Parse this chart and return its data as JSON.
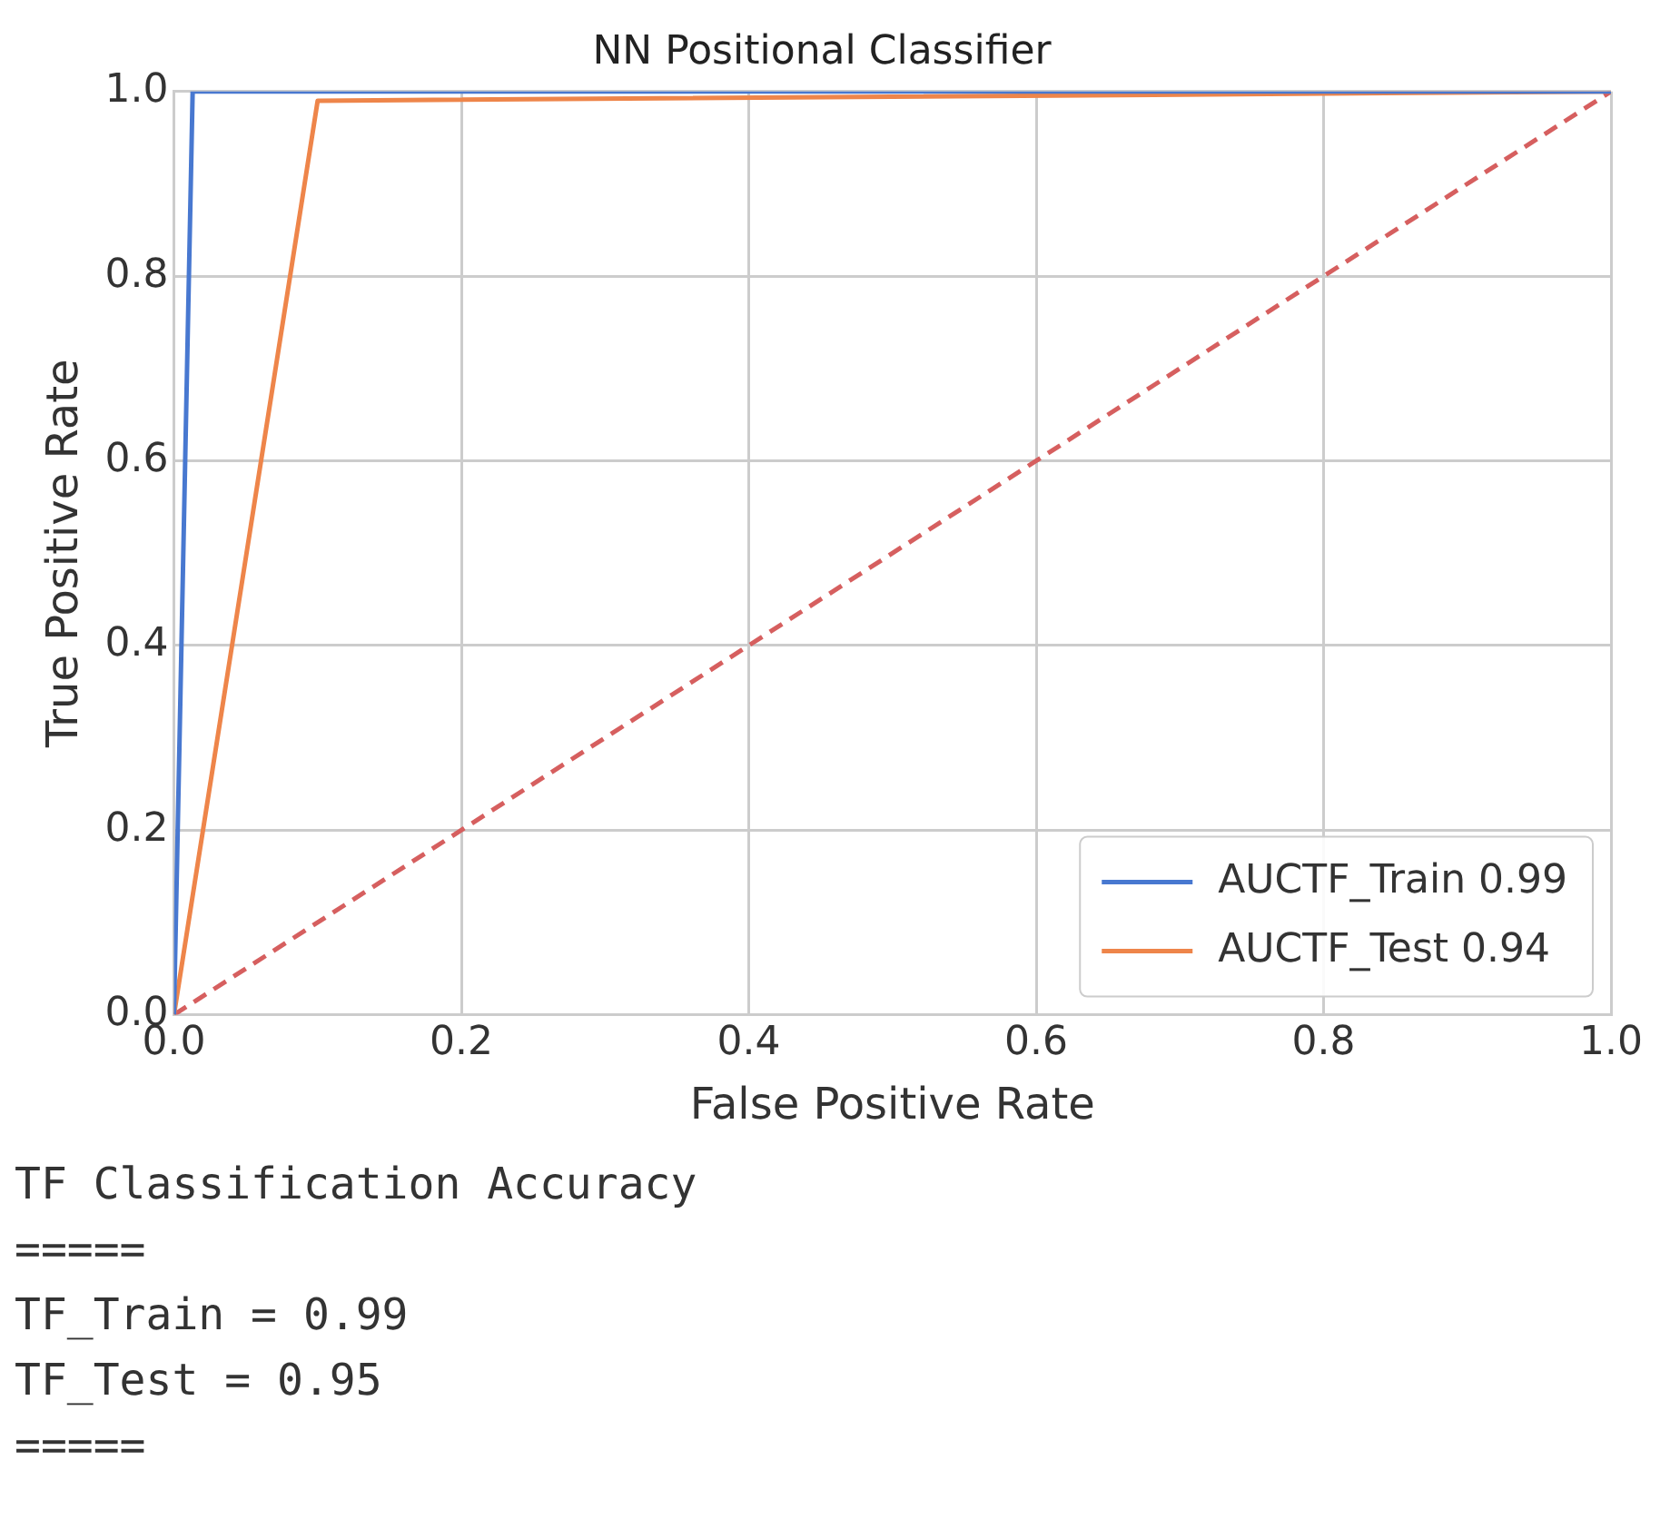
{
  "chart_data": {
    "type": "line",
    "title": "NN Positional Classifier",
    "xlabel": "False Positive Rate",
    "ylabel": "True Positive Rate",
    "xlim": [
      0,
      1
    ],
    "ylim": [
      0,
      1
    ],
    "xticks": [
      {
        "value": 0,
        "label": "0.0"
      },
      {
        "value": 0.2,
        "label": "0.2"
      },
      {
        "value": 0.4,
        "label": "0.4"
      },
      {
        "value": 0.6,
        "label": "0.6"
      },
      {
        "value": 0.8,
        "label": "0.8"
      },
      {
        "value": 1,
        "label": "1.0"
      }
    ],
    "yticks": [
      {
        "value": 0,
        "label": "0.0"
      },
      {
        "value": 0.2,
        "label": "0.2"
      },
      {
        "value": 0.4,
        "label": "0.4"
      },
      {
        "value": 0.6,
        "label": "0.6"
      },
      {
        "value": 0.8,
        "label": "0.8"
      },
      {
        "value": 1,
        "label": "1.0"
      }
    ],
    "grid": true,
    "legend": "bottom right",
    "marker": "none",
    "series": [
      {
        "name": "AUCTF_Train 0.99",
        "color": "#4878d0",
        "x": [
          0,
          0.013,
          1
        ],
        "values": [
          0,
          1,
          1
        ]
      },
      {
        "name": "AUCTF_Test 0.94",
        "color": "#ee854a",
        "x": [
          0,
          0.1,
          1
        ],
        "values": [
          0,
          0.99,
          1
        ]
      },
      {
        "color": "#d65f5f",
        "line_style": "dashed",
        "x": [
          0,
          1
        ],
        "values": [
          0,
          1
        ]
      }
    ],
    "annotations": [
      "TF Classification Accuracy",
      "=====",
      "TF_Train = 0.99",
      "TF_Test = 0.95",
      "====="
    ]
  }
}
